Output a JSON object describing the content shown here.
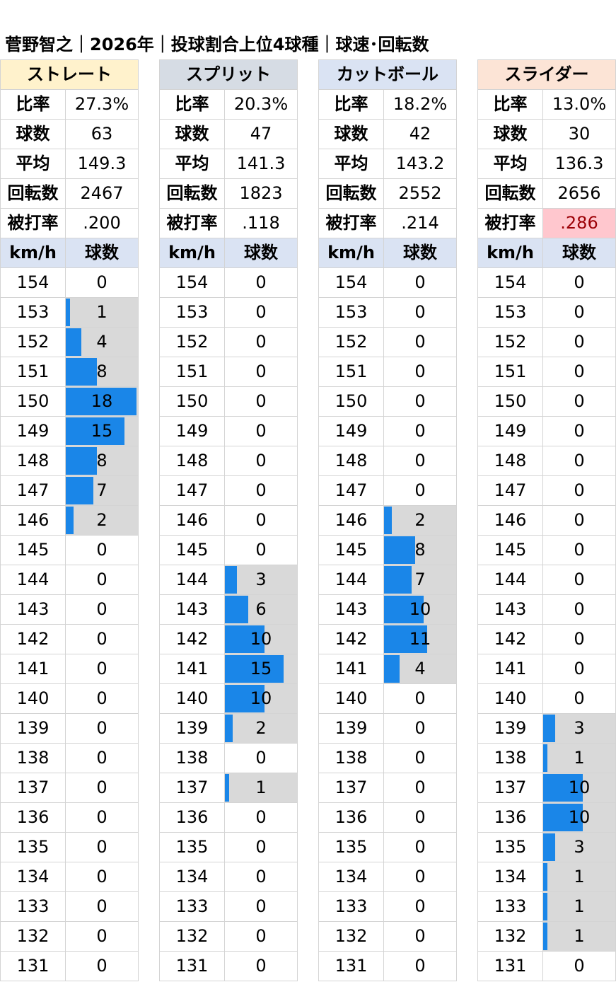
{
  "title": "菅野智之｜2026年｜投球割合上位4球種｜球速･回転数",
  "chart_data": {
    "type": "table",
    "max_count": 18,
    "speeds": [
      154,
      153,
      152,
      151,
      150,
      149,
      148,
      147,
      146,
      145,
      144,
      143,
      142,
      141,
      140,
      139,
      138,
      137,
      136,
      135,
      134,
      133,
      132,
      131
    ],
    "pitches": [
      {
        "name": "ストレート",
        "header_color": "#fff2cc",
        "stats": [
          {
            "label": "比率",
            "value": "27.3%"
          },
          {
            "label": "球数",
            "value": "63"
          },
          {
            "label": "平均",
            "value": "149.3"
          },
          {
            "label": "回転数",
            "value": "2467"
          },
          {
            "label": "被打率",
            "value": ".200"
          }
        ],
        "col_labels": [
          "km/h",
          "球数"
        ],
        "counts": [
          0,
          1,
          4,
          8,
          18,
          15,
          8,
          7,
          2,
          0,
          0,
          0,
          0,
          0,
          0,
          0,
          0,
          0,
          0,
          0,
          0,
          0,
          0,
          0
        ]
      },
      {
        "name": "スプリット",
        "header_color": "#d6dce4",
        "stats": [
          {
            "label": "比率",
            "value": "20.3%"
          },
          {
            "label": "球数",
            "value": "47"
          },
          {
            "label": "平均",
            "value": "141.3"
          },
          {
            "label": "回転数",
            "value": "1823"
          },
          {
            "label": "被打率",
            "value": ".118"
          }
        ],
        "col_labels": [
          "km/h",
          "球数"
        ],
        "counts": [
          0,
          0,
          0,
          0,
          0,
          0,
          0,
          0,
          0,
          0,
          3,
          6,
          10,
          15,
          10,
          2,
          0,
          1,
          0,
          0,
          0,
          0,
          0,
          0
        ]
      },
      {
        "name": "カットボール",
        "header_color": "#dae3f3",
        "stats": [
          {
            "label": "比率",
            "value": "18.2%"
          },
          {
            "label": "球数",
            "value": "42"
          },
          {
            "label": "平均",
            "value": "143.2"
          },
          {
            "label": "回転数",
            "value": "2552"
          },
          {
            "label": "被打率",
            "value": ".214"
          }
        ],
        "col_labels": [
          "km/h",
          "球数"
        ],
        "counts": [
          0,
          0,
          0,
          0,
          0,
          0,
          0,
          0,
          2,
          8,
          7,
          10,
          11,
          4,
          0,
          0,
          0,
          0,
          0,
          0,
          0,
          0,
          0,
          0
        ]
      },
      {
        "name": "スライダー",
        "header_color": "#fce4d6",
        "stats": [
          {
            "label": "比率",
            "value": "13.0%"
          },
          {
            "label": "球数",
            "value": "30"
          },
          {
            "label": "平均",
            "value": "136.3"
          },
          {
            "label": "回転数",
            "value": "2656"
          },
          {
            "label": "被打率",
            "value": ".286",
            "highlight_bg": "#ffc7ce",
            "highlight_color": "#9c0006"
          }
        ],
        "col_labels": [
          "km/h",
          "球数"
        ],
        "counts": [
          0,
          0,
          0,
          0,
          0,
          0,
          0,
          0,
          0,
          0,
          0,
          0,
          0,
          0,
          0,
          3,
          1,
          10,
          10,
          3,
          1,
          1,
          1,
          0
        ]
      }
    ]
  }
}
